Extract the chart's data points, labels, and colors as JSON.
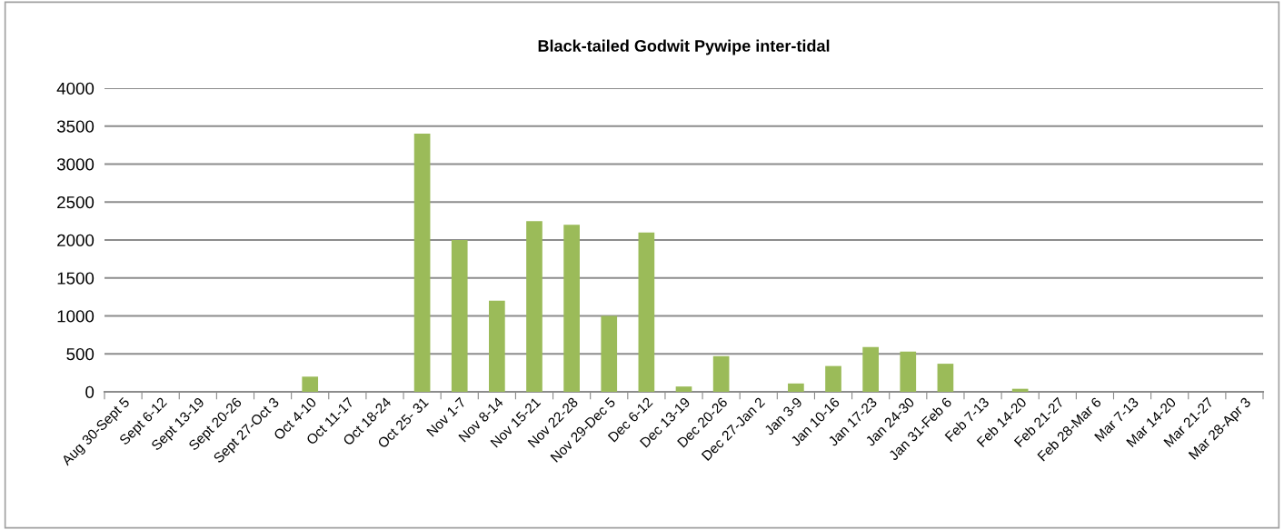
{
  "chart_data": {
    "type": "bar",
    "title": "Black-tailed Godwit Pywipe inter-tidal",
    "categories": [
      "Aug 30-Sept 5",
      "Sept 6-12",
      "Sept 13-19",
      "Sept 20-26",
      "Sept 27-Oct 3",
      "Oct 4-10",
      "Oct 11-17",
      "Oct 18-24",
      "Oct 25- 31",
      "Nov 1-7",
      "Nov 8-14",
      "Nov 15-21",
      "Nov 22-28",
      "Nov 29-Dec 5",
      "Dec 6-12",
      "Dec 13-19",
      "Dec 20-26",
      "Dec 27-Jan 2",
      "Jan 3-9",
      "Jan 10-16",
      "Jan 17-23",
      "Jan 24-30",
      "Jan 31-Feb 6",
      "Feb 7-13",
      "Feb 14-20",
      "Feb 21-27",
      "Feb 28-Mar 6",
      "Mar 7-13",
      "Mar 14-20",
      "Mar 21-27",
      "Mar 28-Apr 3"
    ],
    "values": [
      0,
      0,
      0,
      0,
      0,
      200,
      0,
      null,
      3400,
      2000,
      1200,
      2250,
      2200,
      1000,
      2100,
      70,
      470,
      0,
      110,
      340,
      590,
      530,
      370,
      0,
      40,
      0,
      0,
      0,
      0,
      0,
      0
    ],
    "color": "#9bbb59",
    "ylim": [
      0,
      4000
    ],
    "yticks": [
      0,
      500,
      1000,
      1500,
      2000,
      2500,
      3000,
      3500,
      4000
    ],
    "grid": "y",
    "legend": false
  }
}
